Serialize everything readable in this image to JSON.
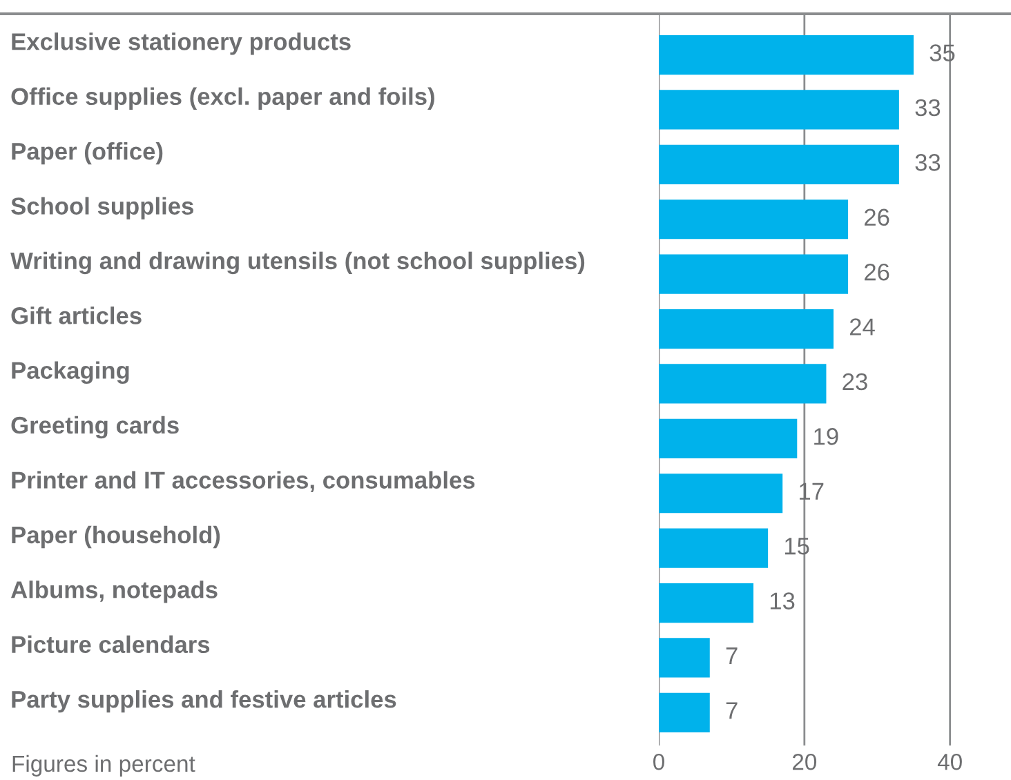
{
  "chart_data": {
    "type": "bar",
    "orientation": "horizontal",
    "categories": [
      "Exclusive stationery products",
      "Office supplies (excl. paper and foils)",
      "Paper (office)",
      "School supplies",
      "Writing and drawing utensils (not school supplies)",
      "Gift articles",
      "Packaging",
      "Greeting cards",
      "Printer and IT accessories, consumables",
      "Paper (household)",
      "Albums, notepads",
      "Picture calendars",
      "Party supplies and festive articles"
    ],
    "values": [
      35,
      33,
      33,
      26,
      26,
      24,
      23,
      19,
      17,
      15,
      13,
      7,
      7
    ],
    "color": "#00b2eb",
    "xlim": [
      0,
      48
    ],
    "xticks": [
      0,
      20,
      40
    ],
    "grid": "x",
    "data_labels": true,
    "annotations": [
      "Figures in percent"
    ]
  }
}
